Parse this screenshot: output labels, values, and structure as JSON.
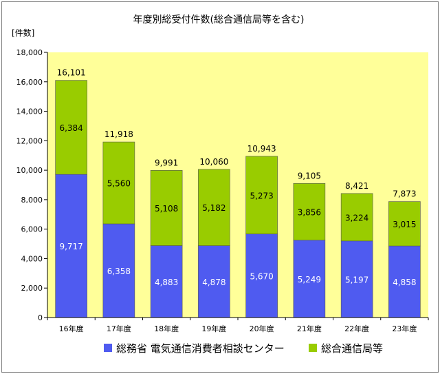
{
  "chart_data": {
    "type": "bar",
    "stacked": true,
    "title": "年度別総受付件数(総合通信局等を含む)",
    "ylabel": "[件数]",
    "xlabel": "",
    "ylim": [
      0,
      18000
    ],
    "yticks": [
      0,
      2000,
      4000,
      6000,
      8000,
      10000,
      12000,
      14000,
      16000,
      18000
    ],
    "ytick_labels": [
      "0",
      "2,000",
      "4,000",
      "6,000",
      "8,000",
      "10,000",
      "12,000",
      "14,000",
      "16,000",
      "18,000"
    ],
    "grid": false,
    "legend_position": "bottom",
    "plot_background": "#ffff99",
    "categories": [
      "16年度",
      "17年度",
      "18年度",
      "19年度",
      "20年度",
      "21年度",
      "22年度",
      "23年度"
    ],
    "series": [
      {
        "name": "総務省 電気通信消費者相談センター",
        "color": "#4f5bf0",
        "values": [
          9717,
          6358,
          4883,
          4878,
          5670,
          5249,
          5197,
          4858
        ],
        "labels": [
          "9,717",
          "6,358",
          "4,883",
          "4,878",
          "5,670",
          "5,249",
          "5,197",
          "4,858"
        ]
      },
      {
        "name": "総合通信局等",
        "color": "#99cc00",
        "values": [
          6384,
          5560,
          5108,
          5182,
          5273,
          3856,
          3224,
          3015
        ],
        "labels": [
          "6,384",
          "5,560",
          "5,108",
          "5,182",
          "5,273",
          "3,856",
          "3,224",
          "3,015"
        ]
      }
    ],
    "totals": [
      16101,
      11918,
      9991,
      10060,
      10943,
      9105,
      8421,
      7873
    ],
    "total_labels": [
      "16,101",
      "11,918",
      "9,991",
      "10,060",
      "10,943",
      "9,105",
      "8,421",
      "7,873"
    ]
  }
}
